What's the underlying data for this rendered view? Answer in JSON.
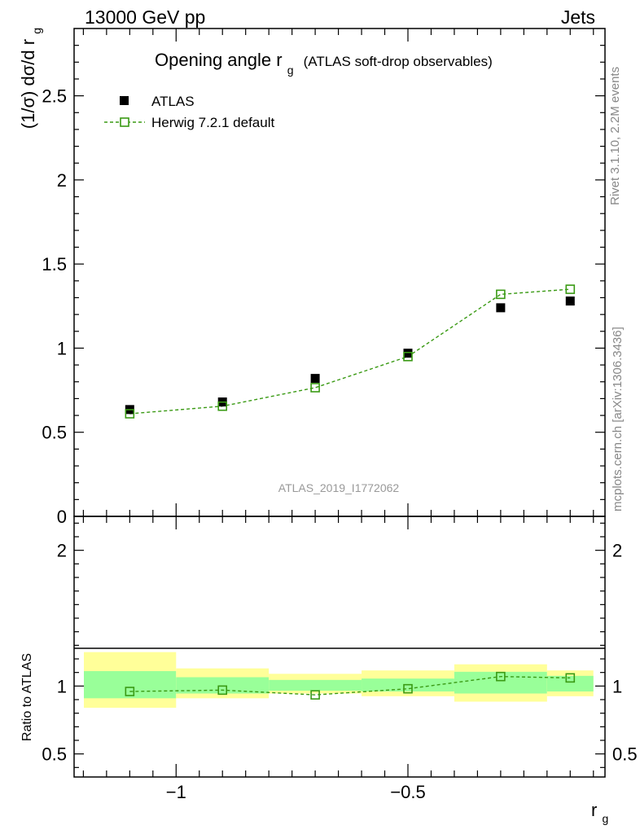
{
  "header": {
    "left_label": "13000 GeV pp",
    "right_label": "Jets"
  },
  "plot": {
    "title_main": "Opening angle r",
    "title_sub": "g",
    "title_paren": "(ATLAS soft-drop observables)",
    "ylabel_main": "(1/σ) dσ/d r",
    "ylabel_sub": "g",
    "watermark": "ATLAS_2019_I1772062",
    "side_rivet": "Rivet 3.1.10,  2.2M events",
    "side_mcplots": "mcplots.cern.ch [arXiv:1306.3436]"
  },
  "legend": {
    "data_label": "ATLAS",
    "mc_label": "Herwig 7.2.1 default"
  },
  "ratio": {
    "ylabel": "Ratio to ATLAS"
  },
  "xaxis": {
    "label_main": "r",
    "label_sub": "g"
  },
  "colors": {
    "data": "#000000",
    "mc": "#3a9a14",
    "band_inner": "#99ff99",
    "band_outer": "#ffff99",
    "watermark": "#999999"
  },
  "chart_data": [
    {
      "type": "scatter",
      "panel": "main",
      "xlim": [
        -1.22,
        -0.075
      ],
      "ylim": [
        0,
        2.9
      ],
      "xticks": [
        "−1",
        "−0.5"
      ],
      "yticks": [
        "0",
        "0.5",
        "1",
        "1.5",
        "2",
        "2.5"
      ],
      "bins": [
        [
          -1.2,
          -1.0
        ],
        [
          -1.0,
          -0.8
        ],
        [
          -0.8,
          -0.6
        ],
        [
          -0.6,
          -0.4
        ],
        [
          -0.4,
          -0.2
        ],
        [
          -0.2,
          -0.1
        ]
      ],
      "x": [
        -1.1,
        -0.9,
        -0.7,
        -0.5,
        -0.3,
        -0.15
      ],
      "series": [
        {
          "name": "ATLAS",
          "values": [
            0.635,
            0.68,
            0.82,
            0.97,
            1.24,
            1.28
          ]
        },
        {
          "name": "Herwig 7.2.1 default",
          "values": [
            0.61,
            0.655,
            0.765,
            0.95,
            1.32,
            1.35
          ]
        }
      ]
    },
    {
      "type": "scatter",
      "panel": "ratio",
      "xlim": [
        -1.22,
        -0.075
      ],
      "ylim": [
        0.33,
        2.25
      ],
      "yticks": [
        "0.5",
        "1",
        "2"
      ],
      "ylabel": "Ratio to ATLAS",
      "bins": [
        [
          -1.2,
          -1.0
        ],
        [
          -1.0,
          -0.8
        ],
        [
          -0.8,
          -0.6
        ],
        [
          -0.6,
          -0.4
        ],
        [
          -0.4,
          -0.2
        ],
        [
          -0.2,
          -0.1
        ]
      ],
      "x": [
        -1.1,
        -0.9,
        -0.7,
        -0.5,
        -0.3,
        -0.15
      ],
      "band_inner": [
        [
          0.91,
          1.11
        ],
        [
          0.945,
          1.065
        ],
        [
          0.965,
          1.045
        ],
        [
          0.96,
          1.055
        ],
        [
          0.945,
          1.105
        ],
        [
          0.96,
          1.075
        ]
      ],
      "band_outer": [
        [
          0.84,
          1.25
        ],
        [
          0.91,
          1.13
        ],
        [
          0.945,
          1.09
        ],
        [
          0.925,
          1.115
        ],
        [
          0.885,
          1.16
        ],
        [
          0.925,
          1.115
        ]
      ],
      "series": [
        {
          "name": "Herwig 7.2.1 default",
          "values": [
            0.96,
            0.97,
            0.935,
            0.98,
            1.07,
            1.06
          ]
        }
      ]
    }
  ]
}
